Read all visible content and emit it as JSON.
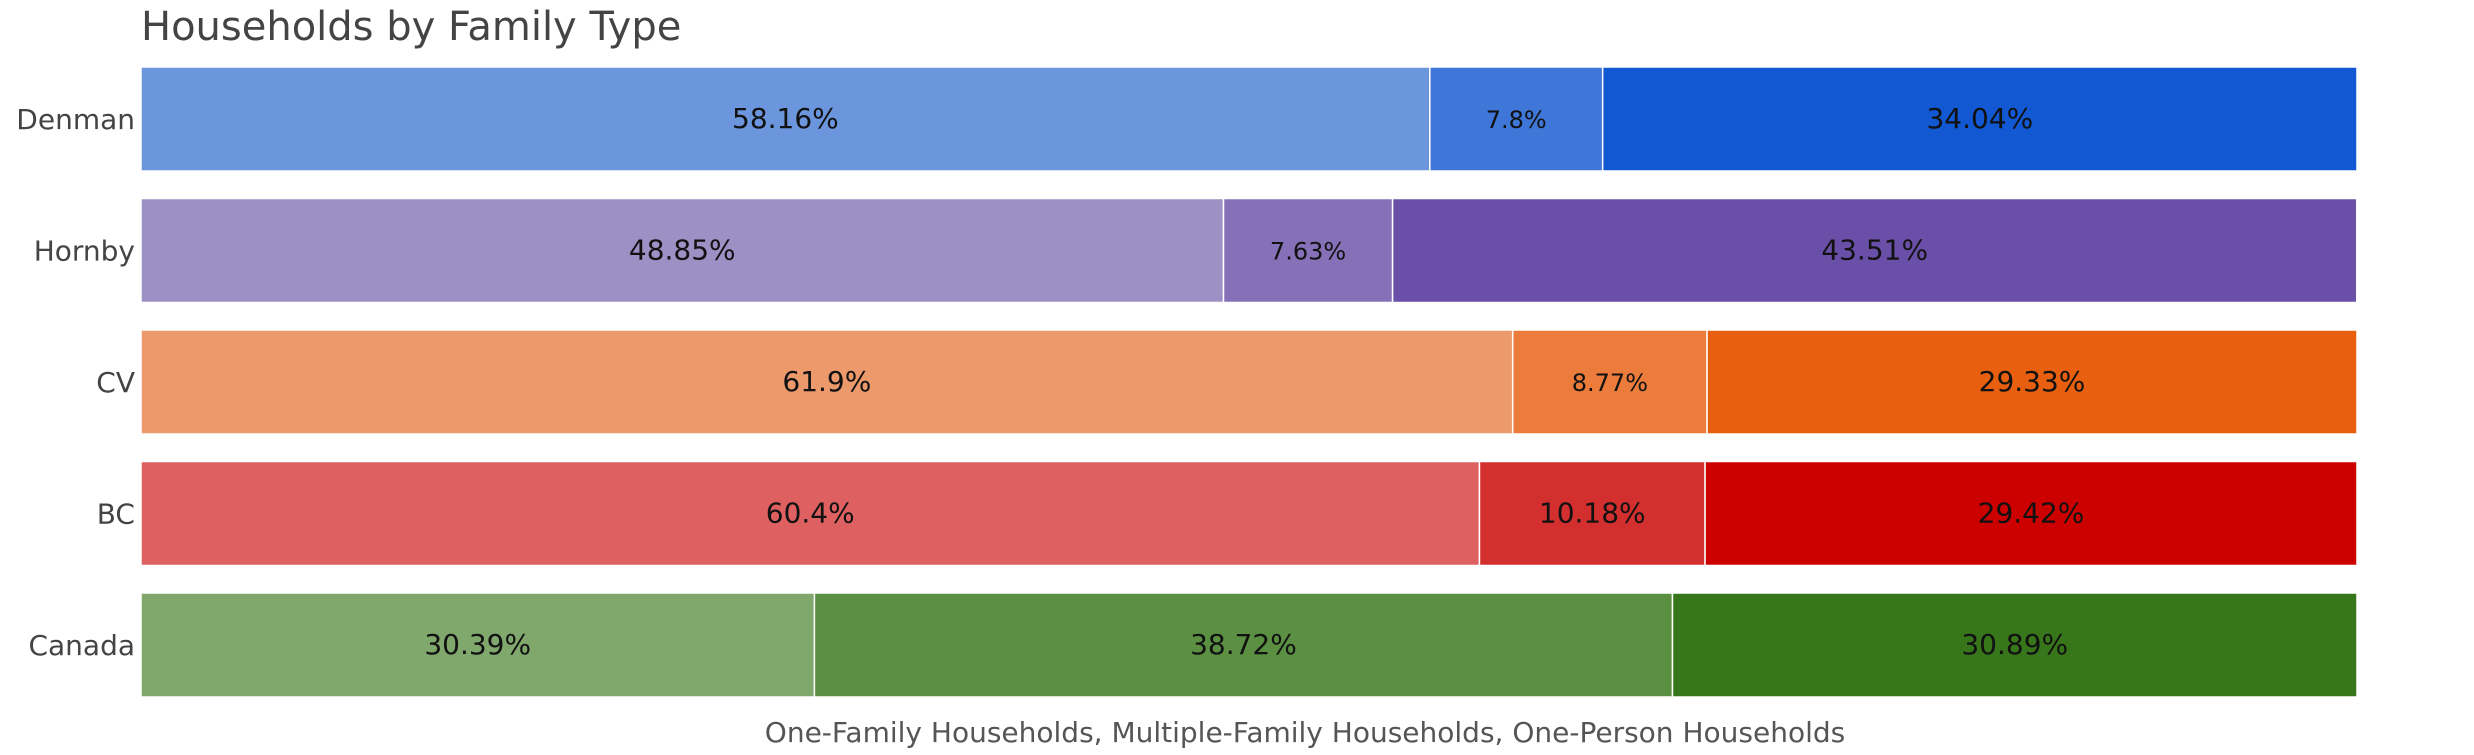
{
  "chart_data": {
    "type": "bar",
    "orientation": "horizontal",
    "stacked": true,
    "normalized": true,
    "title": "Households by Family Type",
    "xlabel": "One-Family Households, Multiple-Family Households, One-Person Households",
    "ylabel": "",
    "xlim": [
      0,
      100
    ],
    "grid": false,
    "legend": "none",
    "categories": [
      "Denman",
      "Hornby",
      "CV",
      "BC",
      "Canada"
    ],
    "series": [
      {
        "values": [
          58.16,
          48.85,
          61.9,
          60.4,
          30.39
        ]
      },
      {
        "values": [
          7.8,
          7.63,
          8.77,
          10.18,
          38.72
        ]
      },
      {
        "values": [
          34.04,
          43.51,
          29.33,
          29.42,
          30.89
        ]
      }
    ],
    "labels": [
      [
        "58.16%",
        "7.8%",
        "34.04%"
      ],
      [
        "48.85%",
        "7.63%",
        "43.51%"
      ],
      [
        "61.9%",
        "8.77%",
        "29.33%"
      ],
      [
        "60.4%",
        "10.18%",
        "29.42%"
      ],
      [
        "30.39%",
        "38.72%",
        "30.89%"
      ]
    ],
    "colors": [
      [
        "#6b95dd",
        "#3f77d9",
        "#1158d2"
      ],
      [
        "#9d90c4",
        "#8670b8",
        "#6a4fa8"
      ],
      [
        "#ec996b",
        "#eb7c3c",
        "#e8600f"
      ],
      [
        "#de6060",
        "#d32f2f",
        "#cd0000"
      ],
      [
        "#80a86d",
        "#5b9043",
        "#37761b"
      ]
    ]
  }
}
